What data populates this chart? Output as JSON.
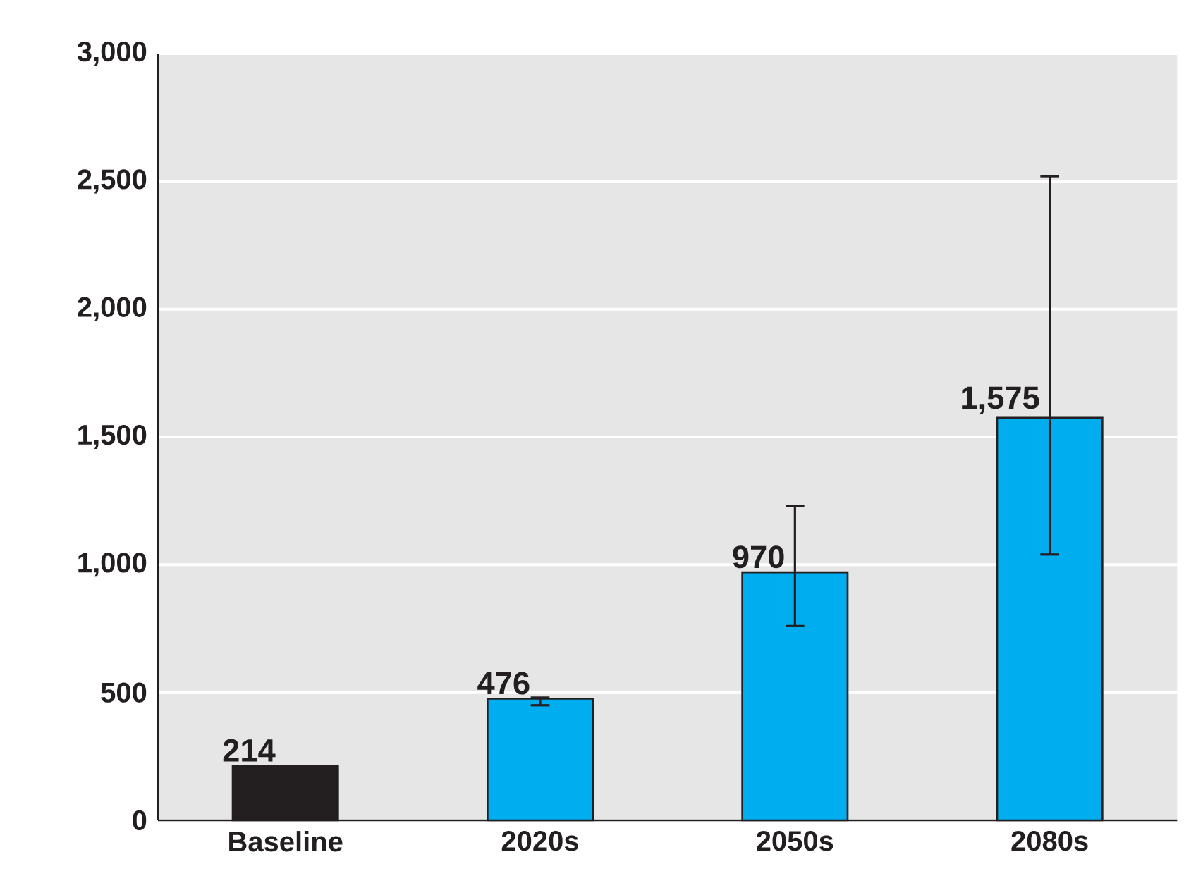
{
  "chart_data": {
    "type": "bar",
    "categories": [
      "Baseline",
      "2020s",
      "2050s",
      "2080s"
    ],
    "values": [
      214,
      476,
      970,
      1575
    ],
    "colors": [
      "#231f20",
      "#00aeef",
      "#00aeef",
      "#00aeef"
    ],
    "errors": [
      null,
      [
        450,
        480
      ],
      [
        760,
        1230
      ],
      [
        1040,
        2520
      ]
    ],
    "value_labels": [
      "214",
      "476",
      "970",
      "1,575"
    ],
    "ylim": [
      0,
      3000
    ],
    "yticks": [
      0,
      500,
      {
        "value": 1000,
        "label": "1,000"
      },
      {
        "value": 1500,
        "label": "1,500"
      },
      {
        "value": 2000,
        "label": "2,000"
      },
      {
        "value": 2500,
        "label": "2,500"
      },
      {
        "value": 3000,
        "label": "3,000"
      }
    ],
    "grid": "y"
  }
}
